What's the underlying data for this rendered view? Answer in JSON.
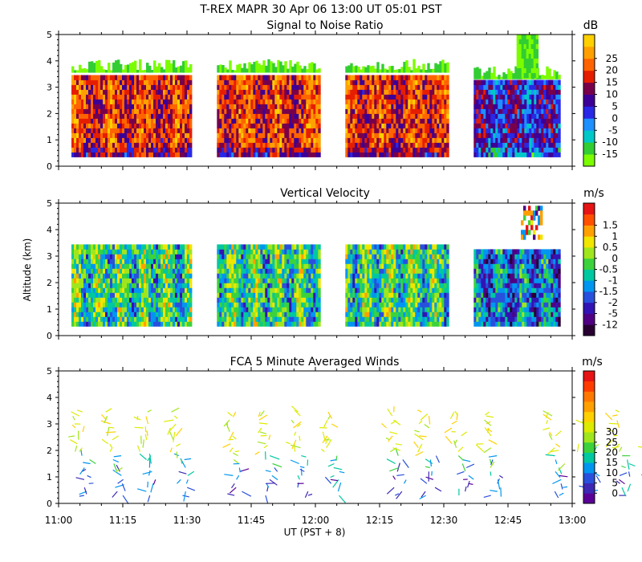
{
  "header": {
    "title": "T-REX  MAPR 30 Apr 06  13:00 UT  05:01  PST"
  },
  "chart_data": [
    {
      "type": "heatmap",
      "title": "Signal to Noise Ratio",
      "ylabel": "",
      "ylim": [
        0,
        5
      ],
      "yticks": [
        "0",
        "1",
        "2",
        "3",
        "4",
        "5"
      ],
      "colorbar": {
        "unit": "dB",
        "labels": [
          "-15",
          "-10",
          "-5",
          "0",
          "5",
          "10",
          "15",
          "20",
          "25"
        ],
        "colors": [
          "#7cfc00",
          "#32cd32",
          "#00c8c8",
          "#1e90ff",
          "#2828e6",
          "#3c0096",
          "#78004b",
          "#e61e00",
          "#ff6400",
          "#ffa000",
          "#ffd000"
        ]
      }
    },
    {
      "type": "heatmap",
      "title": "Vertical Velocity",
      "ylabel": "Altitude (km)",
      "ylim": [
        0,
        5
      ],
      "yticks": [
        "0",
        "1",
        "2",
        "3",
        "4",
        "5"
      ],
      "colorbar": {
        "unit": "m/s",
        "labels": [
          "-12",
          "-5",
          "-2",
          "-1.5",
          "-1",
          "-0.5",
          "0",
          "0.5",
          "1",
          "1.5"
        ],
        "colors": [
          "#280032",
          "#500082",
          "#3214b4",
          "#2850dc",
          "#0096f0",
          "#00c8a0",
          "#3cd23c",
          "#a0e61e",
          "#f0e600",
          "#ffa000",
          "#ff5000",
          "#e61414"
        ]
      }
    },
    {
      "type": "scatter",
      "title": "FCA 5 Minute Averaged Winds",
      "ylabel": "",
      "ylim": [
        0,
        5
      ],
      "yticks": [
        "0",
        "1",
        "2",
        "3",
        "4",
        "5"
      ],
      "colorbar": {
        "unit": "m/s",
        "labels": [
          "0",
          "5",
          "10",
          "15",
          "20",
          "25",
          "30"
        ],
        "colors": [
          "#5a0096",
          "#3c28b4",
          "#2850dc",
          "#0096f0",
          "#00c8a0",
          "#3cd23c",
          "#a0e61e",
          "#dceb00",
          "#ffd000",
          "#ffa000",
          "#ff7800",
          "#ff3c00",
          "#e61414"
        ]
      },
      "profile_times_min": [
        6.5,
        14,
        21.5,
        29,
        42,
        49.5,
        57,
        64.5,
        79.5,
        87,
        94.5,
        102,
        117,
        124.5,
        132,
        139.5
      ]
    }
  ],
  "xaxis": {
    "xlabel": "UT  (PST + 8)",
    "xlim_min": [
      0,
      120
    ],
    "ticks": [
      "11:00",
      "11:15",
      "11:30",
      "11:45",
      "12:00",
      "12:15",
      "12:30",
      "12:45",
      "13:00"
    ],
    "data_segments_min": [
      [
        3,
        31
      ],
      [
        37,
        61
      ],
      [
        67,
        91
      ],
      [
        97,
        117
      ]
    ]
  }
}
